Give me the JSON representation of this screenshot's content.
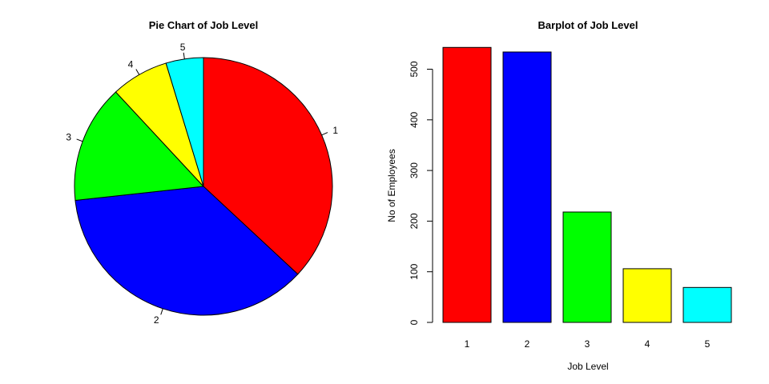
{
  "chart_data": [
    {
      "type": "pie",
      "title": "Pie Chart of Job Level",
      "categories": [
        "1",
        "2",
        "3",
        "4",
        "5"
      ],
      "values": [
        543,
        534,
        218,
        106,
        69
      ],
      "colors": [
        "#ff0000",
        "#0000ff",
        "#00ff00",
        "#ffff00",
        "#00ffff"
      ],
      "start": "12 o'clock",
      "direction": "clockwise"
    },
    {
      "type": "bar",
      "title": "Barplot of Job Level",
      "categories": [
        "1",
        "2",
        "3",
        "4",
        "5"
      ],
      "values": [
        543,
        534,
        218,
        106,
        69
      ],
      "colors": [
        "#ff0000",
        "#0000ff",
        "#00ff00",
        "#ffff00",
        "#00ffff"
      ],
      "xlabel": "Job Level",
      "ylabel": "No of Employees",
      "yticks": [
        0,
        100,
        200,
        300,
        400,
        500
      ],
      "ylim": [
        0,
        543
      ],
      "grid": false,
      "legend": "none"
    }
  ]
}
